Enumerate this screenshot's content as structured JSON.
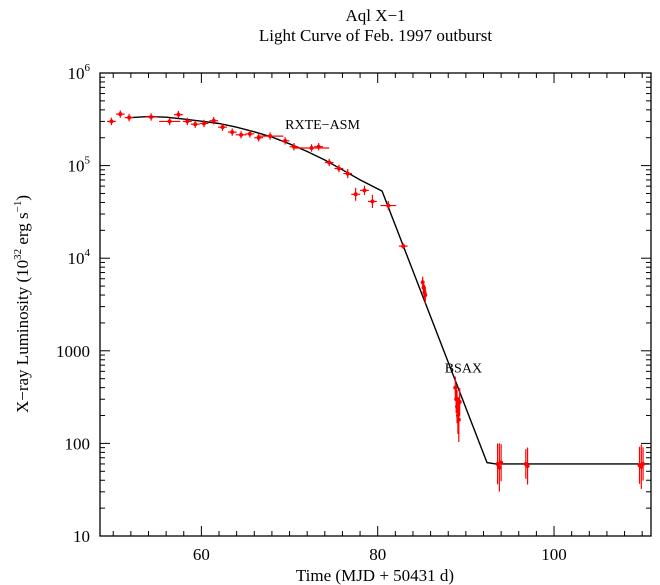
{
  "chart_data": {
    "type": "scatter",
    "title": "Aql X−1",
    "subtitle": "Light Curve of Feb. 1997 outburst",
    "xlabel": "Time (MJD + 50431 d)",
    "ylabel_main": "X−ray Luminosity (10",
    "ylabel_exp1": "32",
    "ylabel_mid": " erg s",
    "ylabel_exp2": "−1",
    "ylabel_end": ")",
    "xscale": "linear",
    "yscale": "log",
    "xlim": [
      48.5,
      111
    ],
    "ylim": [
      10,
      1000000
    ],
    "grid": false,
    "x_ticks": [
      {
        "value": 60,
        "label": "60"
      },
      {
        "value": 80,
        "label": "80"
      },
      {
        "value": 100,
        "label": "100"
      }
    ],
    "y_ticks": [
      {
        "value": 10,
        "label": "10"
      },
      {
        "value": 100,
        "label": "100"
      },
      {
        "value": 1000,
        "label": "1000"
      },
      {
        "value": 10000,
        "label": "10",
        "exp": "4"
      },
      {
        "value": 100000,
        "label": "10",
        "exp": "5"
      },
      {
        "value": 1000000,
        "label": "10",
        "exp": "6"
      }
    ],
    "annotations": [
      {
        "text": "RXTE−ASM",
        "x": 69.5,
        "y": 250000
      },
      {
        "text": "BSAX",
        "x": 87.6,
        "y": 580
      }
    ],
    "series": [
      {
        "label": "RXTE-ASM",
        "color": "#ff0000",
        "points": [
          {
            "x": 49.8,
            "y": 300000,
            "xerr": 0.5,
            "yerr": 0.04
          },
          {
            "x": 50.8,
            "y": 360000,
            "xerr": 0.5,
            "yerr": 0.04
          },
          {
            "x": 51.8,
            "y": 330000,
            "xerr": 0.5,
            "yerr": 0.04
          },
          {
            "x": 54.3,
            "y": 335000,
            "xerr": 0.7,
            "yerr": 0.04
          },
          {
            "x": 56.4,
            "y": 300000,
            "xerr": 1.2,
            "yerr": 0.04
          },
          {
            "x": 57.4,
            "y": 355000,
            "xerr": 0.5,
            "yerr": 0.04
          },
          {
            "x": 58.4,
            "y": 300000,
            "xerr": 0.5,
            "yerr": 0.04
          },
          {
            "x": 59.3,
            "y": 280000,
            "xerr": 0.5,
            "yerr": 0.04
          },
          {
            "x": 60.3,
            "y": 285000,
            "xerr": 0.5,
            "yerr": 0.04
          },
          {
            "x": 61.4,
            "y": 305000,
            "xerr": 0.5,
            "yerr": 0.04
          },
          {
            "x": 62.4,
            "y": 260000,
            "xerr": 0.5,
            "yerr": 0.04
          },
          {
            "x": 63.5,
            "y": 230000,
            "xerr": 0.5,
            "yerr": 0.04
          },
          {
            "x": 64.5,
            "y": 215000,
            "xerr": 0.6,
            "yerr": 0.04
          },
          {
            "x": 65.5,
            "y": 220000,
            "xerr": 0.5,
            "yerr": 0.04
          },
          {
            "x": 66.5,
            "y": 200000,
            "xerr": 0.5,
            "yerr": 0.04
          },
          {
            "x": 67.8,
            "y": 208000,
            "xerr": 1.5,
            "yerr": 0.04
          },
          {
            "x": 69.5,
            "y": 185000,
            "xerr": 0.5,
            "yerr": 0.04
          },
          {
            "x": 70.5,
            "y": 160000,
            "xerr": 0.5,
            "yerr": 0.04
          },
          {
            "x": 72.5,
            "y": 155000,
            "xerr": 2.0,
            "yerr": 0.04
          },
          {
            "x": 73.3,
            "y": 160000,
            "xerr": 0.5,
            "yerr": 0.04
          },
          {
            "x": 74.5,
            "y": 108000,
            "xerr": 0.5,
            "yerr": 0.04
          },
          {
            "x": 75.6,
            "y": 93000,
            "xerr": 0.5,
            "yerr": 0.04
          },
          {
            "x": 76.6,
            "y": 82000,
            "xerr": 0.5,
            "yerr": 0.05
          },
          {
            "x": 77.5,
            "y": 49000,
            "xerr": 0.5,
            "yerr": 0.07
          },
          {
            "x": 78.5,
            "y": 54000,
            "xerr": 0.5,
            "yerr": 0.05
          },
          {
            "x": 79.4,
            "y": 41000,
            "xerr": 0.5,
            "yerr": 0.07
          },
          {
            "x": 81.2,
            "y": 37000,
            "xerr": 0.9,
            "yerr": 0.05
          },
          {
            "x": 82.9,
            "y": 13500,
            "xerr": 0.5,
            "yerr": 0.03
          }
        ]
      },
      {
        "label": "BSAX",
        "color": "#ff0000",
        "points": [
          {
            "x": 85.1,
            "y": 5500,
            "xerr": 0,
            "yerr": 0.06
          },
          {
            "x": 85.2,
            "y": 4800,
            "xerr": 0,
            "yerr": 0.07
          },
          {
            "x": 85.3,
            "y": 4300,
            "xerr": 0,
            "yerr": 0.08
          },
          {
            "x": 85.4,
            "y": 4000,
            "xerr": 0,
            "yerr": 0.09
          },
          {
            "x": 88.8,
            "y": 400,
            "xerr": 0,
            "yerr": 0.12
          },
          {
            "x": 88.9,
            "y": 300,
            "xerr": 0,
            "yerr": 0.15
          },
          {
            "x": 89.0,
            "y": 250,
            "xerr": 0,
            "yerr": 0.18
          },
          {
            "x": 89.1,
            "y": 200,
            "xerr": 0,
            "yerr": 0.2
          },
          {
            "x": 89.2,
            "y": 180,
            "xerr": 0,
            "yerr": 0.24
          },
          {
            "x": 89.3,
            "y": 280,
            "xerr": 0,
            "yerr": 0.15
          },
          {
            "x": 93.6,
            "y": 60,
            "xerr": 0,
            "yerr": 0.22
          },
          {
            "x": 93.8,
            "y": 55,
            "xerr": 0,
            "yerr": 0.26
          },
          {
            "x": 94.0,
            "y": 62,
            "xerr": 0,
            "yerr": 0.2
          },
          {
            "x": 96.8,
            "y": 60,
            "xerr": 0,
            "yerr": 0.16
          },
          {
            "x": 97.0,
            "y": 57,
            "xerr": 0,
            "yerr": 0.2
          },
          {
            "x": 109.7,
            "y": 58,
            "xerr": 0,
            "yerr": 0.2
          },
          {
            "x": 109.9,
            "y": 56,
            "xerr": 0,
            "yerr": 0.24
          },
          {
            "x": 110.1,
            "y": 60,
            "xerr": 0,
            "yerr": 0.18
          }
        ]
      }
    ],
    "model_curve": {
      "color": "#000000",
      "points": [
        [
          52,
          330000
        ],
        [
          54,
          338000
        ],
        [
          56,
          333000
        ],
        [
          58,
          318000
        ],
        [
          60,
          302000
        ],
        [
          62,
          285000
        ],
        [
          64,
          260000
        ],
        [
          66,
          232000
        ],
        [
          68,
          203000
        ],
        [
          70,
          172000
        ],
        [
          72,
          142000
        ],
        [
          74,
          115000
        ],
        [
          76,
          90000
        ],
        [
          78,
          70000
        ],
        [
          80.5,
          53000
        ],
        [
          92.4,
          62
        ],
        [
          93.4,
          60
        ],
        [
          110.8,
          60
        ]
      ]
    }
  }
}
